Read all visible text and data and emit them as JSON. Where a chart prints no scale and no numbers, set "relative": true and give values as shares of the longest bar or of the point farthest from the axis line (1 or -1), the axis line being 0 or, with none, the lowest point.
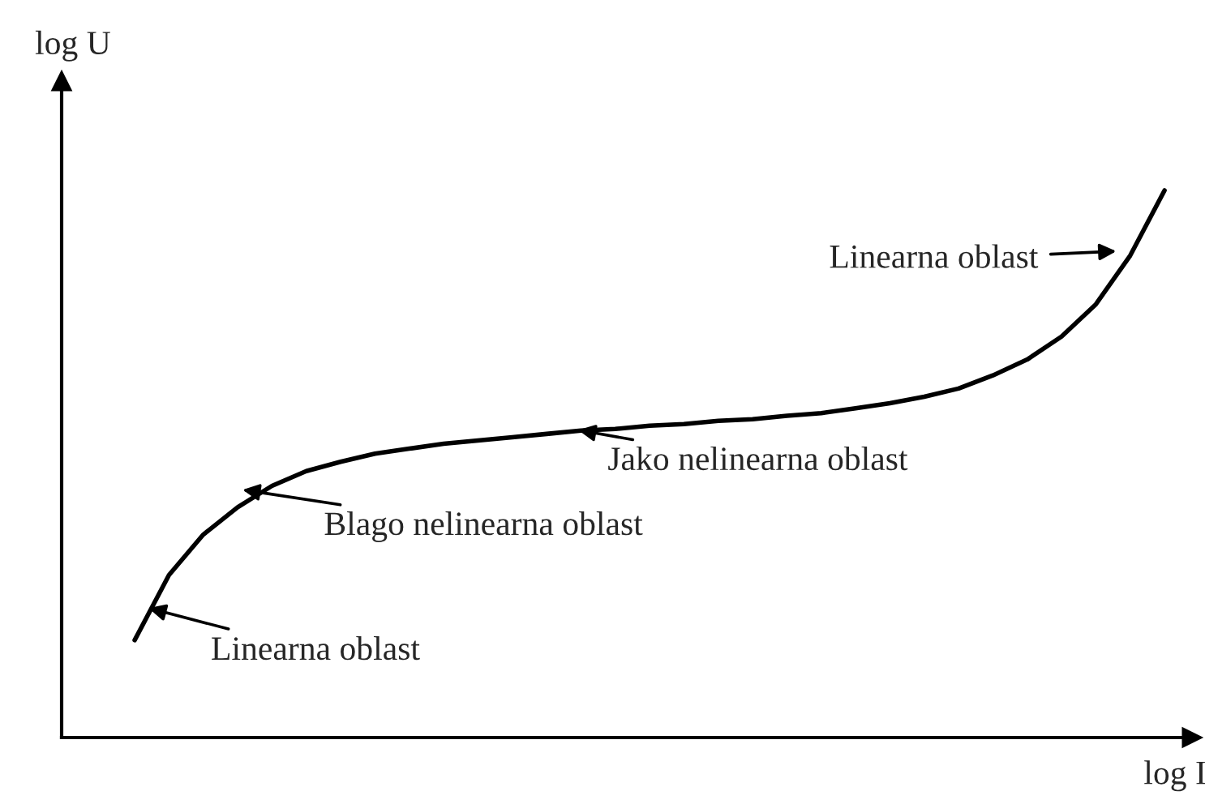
{
  "chart_data": {
    "type": "line",
    "relative": true,
    "xlabel": "log I",
    "ylabel": "log U",
    "categories": [
      null,
      null,
      null,
      null,
      null,
      null,
      null,
      null,
      null,
      null,
      null,
      null,
      null,
      null,
      null,
      null,
      null,
      null,
      null,
      null,
      null,
      null,
      null,
      null,
      null,
      null,
      null,
      null,
      null,
      null,
      null
    ],
    "series": [
      {
        "color": "#000000",
        "values": [
          0.178,
          0.297,
          0.371,
          0.421,
          0.46,
          0.487,
          0.504,
          0.519,
          0.528,
          0.537,
          0.543,
          0.549,
          0.555,
          0.561,
          0.564,
          0.57,
          0.573,
          0.579,
          0.582,
          0.588,
          0.593,
          0.602,
          0.611,
          0.623,
          0.638,
          0.662,
          0.691,
          0.733,
          0.792,
          0.881,
          1.0
        ]
      }
    ],
    "annotations": [
      "Linearna oblast",
      "Jako nelinearna oblast",
      "Blago nelinearna oblast",
      "Linearna oblast"
    ],
    "legend": false,
    "marker": "none",
    "line_style": "solid"
  }
}
